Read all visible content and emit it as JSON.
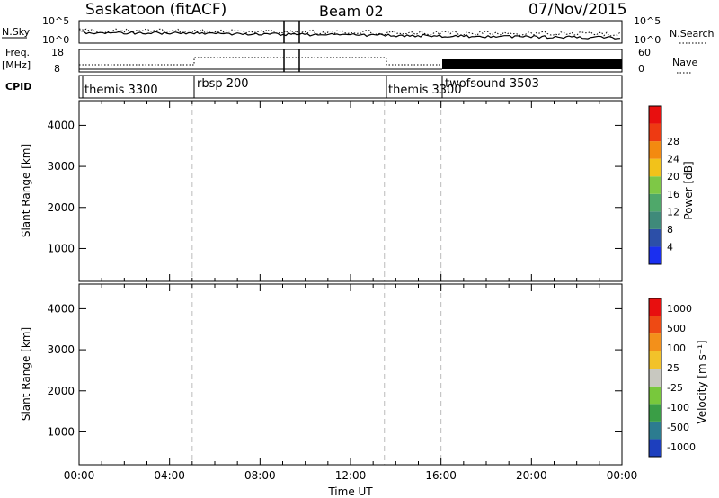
{
  "header": {
    "site": "Saskatoon (fitACF)",
    "beam": "Beam 02",
    "date": "07/Nov/2015"
  },
  "top_panels": {
    "nsky_label": "N.Sky",
    "nsky_ticks": [
      "10^5",
      "10^0"
    ],
    "nsearch_label": "N.Search",
    "nsearch_ticks": [
      "10^5",
      "10^0"
    ],
    "freq_label": "Freq.",
    "freq_unit": "[MHz]",
    "freq_ticks": [
      "18",
      "8"
    ],
    "nave_label": "Nave",
    "nave_ticks": [
      "60",
      "0"
    ],
    "cpid_label": "CPID"
  },
  "chart_data": [
    {
      "type": "heatmap",
      "name": "power",
      "ylabel": "Slant Range [km]",
      "ylim": [
        200,
        4600
      ],
      "yticks": [
        "1000",
        "2000",
        "3000",
        "4000"
      ],
      "colorbar_label": "Power [dB]",
      "colorbar_ticks": [
        "4",
        "8",
        "12",
        "16",
        "20",
        "24",
        "28"
      ],
      "colors": [
        "#1a2ff0",
        "#2c4fa8",
        "#3f8a7a",
        "#4fa86a",
        "#7ec846",
        "#f2c21a",
        "#f38a10",
        "#ee3a12",
        "#e80f0f"
      ]
    },
    {
      "type": "heatmap",
      "name": "velocity",
      "ylabel": "Slant Range [km]",
      "ylim": [
        200,
        4600
      ],
      "yticks": [
        "1000",
        "2000",
        "3000",
        "4000"
      ],
      "xlabel": "Time UT",
      "xticks": [
        "00:00",
        "04:00",
        "08:00",
        "12:00",
        "16:00",
        "20:00",
        "00:00"
      ],
      "colorbar_label": "Velocity [m s⁻¹]",
      "colorbar_ticks": [
        "1000",
        "500",
        "100",
        "25",
        "-25",
        "-100",
        "-500",
        "-1000"
      ],
      "colors": [
        "#1d3fbe",
        "#2c7c90",
        "#3a9e46",
        "#78c83c",
        "#c8c8c0",
        "#f2c22a",
        "#f3901a",
        "#ee4a14",
        "#e80f0f"
      ]
    }
  ],
  "cpid_segments": [
    {
      "label": "themis 3300",
      "start_hour": 0.0
    },
    {
      "label": "rbsp 200",
      "start_hour": 5.0
    },
    {
      "label": "themis 3300",
      "start_hour": 13.5
    },
    {
      "label": "twofsound 3503",
      "start_hour": 16.0
    }
  ]
}
